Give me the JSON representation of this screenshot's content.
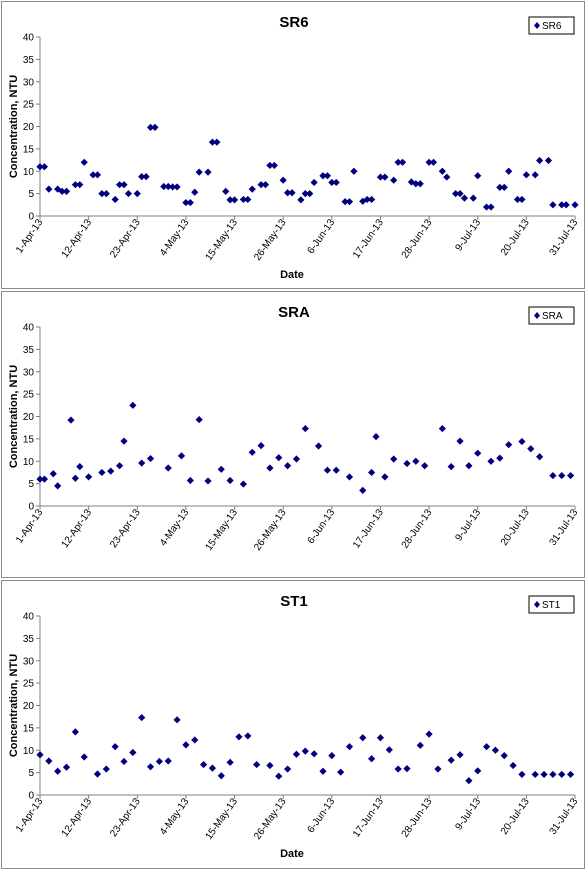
{
  "colors": {
    "marker": "#00007f",
    "axis": "#808080",
    "frame": "#8c8c8c"
  },
  "chart_data": [
    {
      "type": "scatter",
      "title": "SR6",
      "xlabel": "Date",
      "ylabel": "Concentration, NTU",
      "ylim": [
        0,
        40
      ],
      "yticks": [
        "0",
        "5",
        "10",
        "15",
        "20",
        "25",
        "30",
        "35",
        "40"
      ],
      "xlim": [
        "2013-04-01",
        "2013-07-31"
      ],
      "xticks": [
        "1-Apr-13",
        "12-Apr-13",
        "23-Apr-13",
        "4-May-13",
        "15-May-13",
        "26-May-13",
        "6-Jun-13",
        "17-Jun-13",
        "28-Jun-13",
        "9-Jul-13",
        "20-Jul-13",
        "31-Jul-13"
      ],
      "legend": "top-right",
      "grid": false,
      "series": [
        {
          "name": "SR6",
          "x": [
            "2013-04-01",
            "2013-04-02",
            "2013-04-03",
            "2013-04-05",
            "2013-04-06",
            "2013-04-07",
            "2013-04-09",
            "2013-04-10",
            "2013-04-11",
            "2013-04-13",
            "2013-04-14",
            "2013-04-15",
            "2013-04-16",
            "2013-04-18",
            "2013-04-19",
            "2013-04-20",
            "2013-04-21",
            "2013-04-23",
            "2013-04-24",
            "2013-04-25",
            "2013-04-26",
            "2013-04-27",
            "2013-04-29",
            "2013-04-30",
            "2013-05-01",
            "2013-05-02",
            "2013-05-04",
            "2013-05-05",
            "2013-05-06",
            "2013-05-07",
            "2013-05-09",
            "2013-05-10",
            "2013-05-11",
            "2013-05-13",
            "2013-05-14",
            "2013-05-15",
            "2013-05-17",
            "2013-05-18",
            "2013-05-19",
            "2013-05-21",
            "2013-05-22",
            "2013-05-23",
            "2013-05-24",
            "2013-05-26",
            "2013-05-27",
            "2013-05-28",
            "2013-05-30",
            "2013-05-31",
            "2013-06-01",
            "2013-06-02",
            "2013-06-04",
            "2013-06-05",
            "2013-06-06",
            "2013-06-07",
            "2013-06-09",
            "2013-06-10",
            "2013-06-11",
            "2013-06-13",
            "2013-06-14",
            "2013-06-15",
            "2013-06-17",
            "2013-06-18",
            "2013-06-20",
            "2013-06-21",
            "2013-06-22",
            "2013-06-24",
            "2013-06-25",
            "2013-06-26",
            "2013-06-28",
            "2013-06-29",
            "2013-07-01",
            "2013-07-02",
            "2013-07-04",
            "2013-07-05",
            "2013-07-06",
            "2013-07-08",
            "2013-07-09",
            "2013-07-11",
            "2013-07-12",
            "2013-07-14",
            "2013-07-15",
            "2013-07-16",
            "2013-07-18",
            "2013-07-19",
            "2013-07-20",
            "2013-07-22",
            "2013-07-23",
            "2013-07-25",
            "2013-07-26",
            "2013-07-28",
            "2013-07-29",
            "2013-07-31"
          ],
          "y": [
            11,
            11,
            6,
            6,
            5.5,
            5.5,
            7,
            7,
            12,
            9.2,
            9.2,
            5,
            5,
            3.7,
            7,
            7,
            5,
            5,
            8.8,
            8.8,
            19.8,
            19.8,
            6.6,
            6.6,
            6.5,
            6.5,
            3,
            3,
            5.3,
            9.8,
            9.8,
            16.5,
            16.5,
            5.5,
            3.6,
            3.6,
            3.7,
            3.7,
            6,
            7,
            7,
            11.3,
            11.3,
            8,
            5.2,
            5.2,
            3.6,
            5,
            5,
            7.5,
            9,
            9,
            7.5,
            7.5,
            3.2,
            3.2,
            10,
            3.3,
            3.7,
            3.7,
            8.7,
            8.7,
            8,
            12,
            12,
            7.6,
            7.2,
            7.2,
            12,
            12,
            10,
            8.7,
            5,
            5,
            4,
            4,
            9,
            2,
            2,
            6.4,
            6.4,
            10,
            3.7,
            3.7,
            9.2,
            9.2,
            12.4,
            12.4,
            2.5,
            2.5,
            2.5,
            2.5
          ]
        }
      ]
    },
    {
      "type": "scatter",
      "title": "SRA",
      "xlabel": "",
      "ylabel": "Concentration, NTU",
      "ylim": [
        0,
        40
      ],
      "yticks": [
        "0",
        "5",
        "10",
        "15",
        "20",
        "25",
        "30",
        "35",
        "40"
      ],
      "xlim": [
        "2013-04-01",
        "2013-07-31"
      ],
      "xticks": [
        "1-Apr-13",
        "12-Apr-13",
        "23-Apr-13",
        "4-May-13",
        "15-May-13",
        "26-May-13",
        "6-Jun-13",
        "17-Jun-13",
        "28-Jun-13",
        "9-Jul-13",
        "20-Jul-13",
        "31-Jul-13"
      ],
      "legend": "top-right",
      "grid": false,
      "series": [
        {
          "name": "SRA",
          "x": [
            "2013-04-01",
            "2013-04-02",
            "2013-04-04",
            "2013-04-05",
            "2013-04-08",
            "2013-04-09",
            "2013-04-10",
            "2013-04-12",
            "2013-04-15",
            "2013-04-17",
            "2013-04-19",
            "2013-04-20",
            "2013-04-22",
            "2013-04-24",
            "2013-04-26",
            "2013-04-30",
            "2013-05-03",
            "2013-05-05",
            "2013-05-07",
            "2013-05-09",
            "2013-05-12",
            "2013-05-14",
            "2013-05-17",
            "2013-05-19",
            "2013-05-21",
            "2013-05-23",
            "2013-05-25",
            "2013-05-27",
            "2013-05-29",
            "2013-05-31",
            "2013-06-03",
            "2013-06-05",
            "2013-06-07",
            "2013-06-10",
            "2013-06-13",
            "2013-06-15",
            "2013-06-16",
            "2013-06-18",
            "2013-06-20",
            "2013-06-23",
            "2013-06-25",
            "2013-06-27",
            "2013-07-01",
            "2013-07-03",
            "2013-07-05",
            "2013-07-07",
            "2013-07-09",
            "2013-07-12",
            "2013-07-14",
            "2013-07-16",
            "2013-07-19",
            "2013-07-21",
            "2013-07-23",
            "2013-07-26",
            "2013-07-28",
            "2013-07-30"
          ],
          "y": [
            6,
            6,
            7.2,
            4.5,
            19.2,
            6.2,
            8.8,
            6.5,
            7.5,
            7.8,
            9,
            14.5,
            22.5,
            9.6,
            10.6,
            8.5,
            11.2,
            5.7,
            19.3,
            5.6,
            8.2,
            5.7,
            4.9,
            12,
            13.5,
            8.5,
            10.8,
            9,
            10.5,
            17.3,
            13.4,
            8,
            8,
            6.5,
            3.5,
            7.5,
            15.5,
            6.5,
            10.5,
            9.5,
            10,
            9,
            17.3,
            8.8,
            14.5,
            9,
            11.8,
            10,
            10.7,
            13.7,
            14.4,
            12.8,
            11,
            6.8,
            6.8,
            6.8
          ]
        }
      ]
    },
    {
      "type": "scatter",
      "title": "ST1",
      "xlabel": "Date",
      "ylabel": "Concentration, NTU",
      "ylim": [
        0,
        40
      ],
      "yticks": [
        "0",
        "5",
        "10",
        "15",
        "20",
        "25",
        "30",
        "35",
        "40"
      ],
      "xlim": [
        "2013-04-01",
        "2013-07-31"
      ],
      "xticks": [
        "1-Apr-13",
        "12-Apr-13",
        "23-Apr-13",
        "4-May-13",
        "15-May-13",
        "26-May-13",
        "6-Jun-13",
        "17-Jun-13",
        "28-Jun-13",
        "9-Jul-13",
        "20-Jul-13",
        "31-Jul-13"
      ],
      "legend": "top-right",
      "grid": false,
      "series": [
        {
          "name": "ST1",
          "x": [
            "2013-04-01",
            "2013-04-03",
            "2013-04-05",
            "2013-04-07",
            "2013-04-09",
            "2013-04-11",
            "2013-04-14",
            "2013-04-16",
            "2013-04-18",
            "2013-04-20",
            "2013-04-22",
            "2013-04-24",
            "2013-04-26",
            "2013-04-28",
            "2013-04-30",
            "2013-05-02",
            "2013-05-04",
            "2013-05-06",
            "2013-05-08",
            "2013-05-10",
            "2013-05-12",
            "2013-05-14",
            "2013-05-16",
            "2013-05-18",
            "2013-05-20",
            "2013-05-23",
            "2013-05-25",
            "2013-05-27",
            "2013-05-29",
            "2013-05-31",
            "2013-06-02",
            "2013-06-04",
            "2013-06-06",
            "2013-06-08",
            "2013-06-10",
            "2013-06-13",
            "2013-06-15",
            "2013-06-17",
            "2013-06-19",
            "2013-06-21",
            "2013-06-23",
            "2013-06-26",
            "2013-06-28",
            "2013-06-30",
            "2013-07-03",
            "2013-07-05",
            "2013-07-07",
            "2013-07-09",
            "2013-07-11",
            "2013-07-13",
            "2013-07-15",
            "2013-07-17",
            "2013-07-19",
            "2013-07-22",
            "2013-07-24",
            "2013-07-26",
            "2013-07-28",
            "2013-07-30"
          ],
          "y": [
            9,
            7.6,
            5.3,
            6.2,
            14.1,
            8.5,
            4.7,
            5.8,
            10.8,
            7.5,
            9.5,
            17.3,
            6.3,
            7.5,
            7.6,
            16.8,
            11.2,
            12.3,
            6.8,
            6,
            4.3,
            7.3,
            13,
            13.2,
            6.8,
            6.6,
            4.2,
            5.8,
            9.1,
            9.8,
            9.2,
            5.3,
            8.8,
            5.1,
            10.8,
            12.8,
            8.1,
            12.8,
            10.1,
            5.8,
            5.9,
            11.1,
            13.6,
            5.8,
            7.8,
            9,
            3.2,
            5.4,
            10.8,
            10,
            8.8,
            6.6,
            4.6,
            4.6,
            4.6,
            4.6,
            4.6,
            4.6
          ]
        }
      ]
    }
  ]
}
